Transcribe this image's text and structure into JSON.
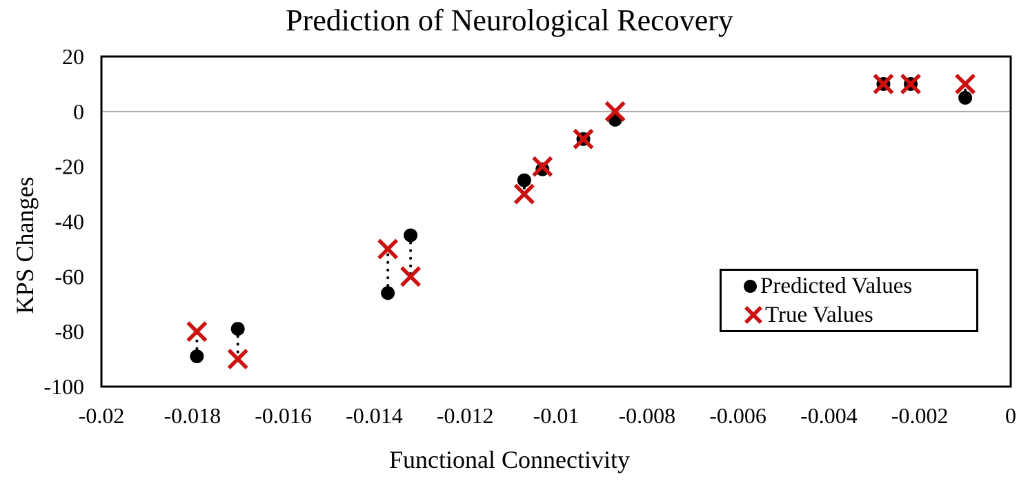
{
  "page": {
    "background": "#FFFFFF"
  },
  "chart_data": {
    "type": "scatter",
    "title": "Prediction of Neurological Recovery",
    "xlabel": "Functional Connectivity",
    "ylabel": "KPS Changes",
    "xlim": [
      -0.02,
      0
    ],
    "ylim": [
      -100,
      20
    ],
    "gridline_values_y": [
      0
    ],
    "legend_position": "inside-lower-right",
    "connectors": "dotted vertical line links predicted and true value at each x",
    "x": [
      -0.0179,
      -0.017,
      -0.0137,
      -0.0132,
      -0.0107,
      -0.0103,
      -0.0094,
      -0.0087,
      -0.0028,
      -0.0022,
      -0.001
    ],
    "series": [
      {
        "name": "Predicted Values",
        "marker": "circle",
        "color": "#000000",
        "values": [
          -89,
          -79,
          -66,
          -45,
          -25,
          -21,
          -10,
          -3,
          10,
          10,
          5
        ]
      },
      {
        "name": "True Values",
        "marker": "x",
        "color": "#CC1111",
        "values": [
          -80,
          -90,
          -50,
          -60,
          -30,
          -20,
          -10,
          0,
          10,
          10,
          10
        ]
      }
    ],
    "x_ticks": {
      "values": [
        -0.02,
        -0.018,
        -0.016,
        -0.014,
        -0.012,
        -0.01,
        -0.008,
        -0.006,
        -0.004,
        -0.002,
        0
      ],
      "labels": [
        "-0.02",
        "-0.018",
        "-0.016",
        "-0.014",
        "-0.012",
        "-0.01",
        "-0.008",
        "-0.006",
        "-0.004",
        "-0.002",
        "0"
      ]
    },
    "y_ticks": {
      "values": [
        20,
        0,
        -20,
        -40,
        -60,
        -80,
        -100
      ],
      "labels": [
        "20",
        "0",
        "-20",
        "-40",
        "-60",
        "-80",
        "-100"
      ]
    }
  },
  "colors": {
    "text": "#000000",
    "predicted_marker": "#000000",
    "true_marker": "#CC1111",
    "gridline": "#ABABAB",
    "plot_border": "#000000",
    "legend_border": "#000000",
    "connector": "#000000"
  }
}
